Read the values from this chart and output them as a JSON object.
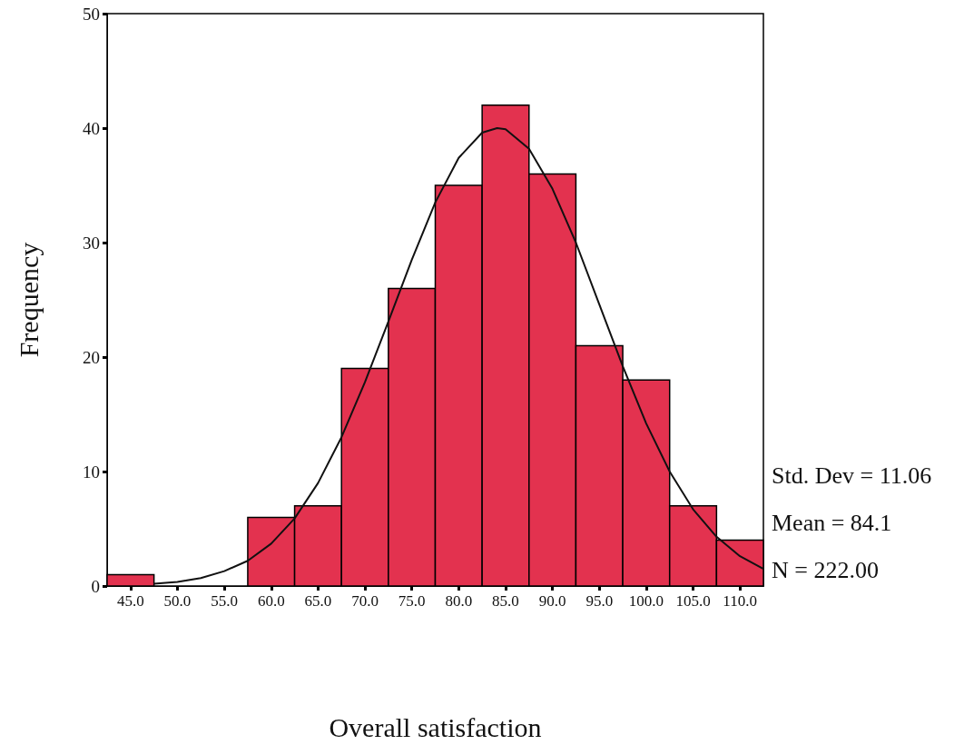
{
  "chart_data": {
    "type": "histogram",
    "xlabel": "Overall satisfaction",
    "ylabel": "Frequency",
    "xlim": [
      42.5,
      112.5
    ],
    "xticks": [
      {
        "value": 45,
        "label": "45.0"
      },
      {
        "value": 50,
        "label": "50.0"
      },
      {
        "value": 55,
        "label": "55.0"
      },
      {
        "value": 60,
        "label": "60.0"
      },
      {
        "value": 65,
        "label": "65.0"
      },
      {
        "value": 70,
        "label": "70.0"
      },
      {
        "value": 75,
        "label": "75.0"
      },
      {
        "value": 80,
        "label": "80.0"
      },
      {
        "value": 85,
        "label": "85.0"
      },
      {
        "value": 90,
        "label": "90.0"
      },
      {
        "value": 95,
        "label": "95.0"
      },
      {
        "value": 100,
        "label": "100.0"
      },
      {
        "value": 105,
        "label": "105.0"
      },
      {
        "value": 110,
        "label": "110.0"
      }
    ],
    "ylim": [
      0,
      50
    ],
    "yticks": [
      0,
      10,
      20,
      30,
      40,
      50
    ],
    "grid": false,
    "series": [
      {
        "type": "histogram",
        "color": "#e3324f",
        "bins": [
          42.5,
          47.5,
          52.5,
          57.5,
          62.5,
          67.5,
          72.5,
          77.5,
          82.5,
          87.5,
          92.5,
          97.5,
          102.5,
          107.5,
          112.5
        ],
        "values": [
          1,
          0,
          0,
          6,
          7,
          19,
          26,
          35,
          42,
          36,
          21,
          18,
          7,
          4
        ]
      },
      {
        "type": "line",
        "color": "#111111",
        "marker": "none",
        "x": [
          47.5,
          50,
          52.5,
          55,
          57.5,
          60,
          62.5,
          65,
          67.5,
          70,
          72.5,
          75,
          77.5,
          80,
          82.5,
          84.1,
          85,
          87.5,
          90,
          92.5,
          95,
          97.5,
          100,
          102.5,
          105,
          107.5,
          110,
          112.5
        ],
        "values": [
          0.2,
          0.35,
          0.7,
          1.3,
          2.2,
          3.7,
          5.9,
          9,
          13,
          17.8,
          23.1,
          28.5,
          33.5,
          37.4,
          39.6,
          40,
          39.9,
          38.2,
          34.7,
          30,
          24.6,
          19.2,
          14.2,
          10,
          6.7,
          4.3,
          2.6,
          1.5
        ]
      }
    ],
    "annotations": [
      "Std. Dev = 11.06",
      "Mean = 84.1",
      "N = 222.00"
    ]
  }
}
